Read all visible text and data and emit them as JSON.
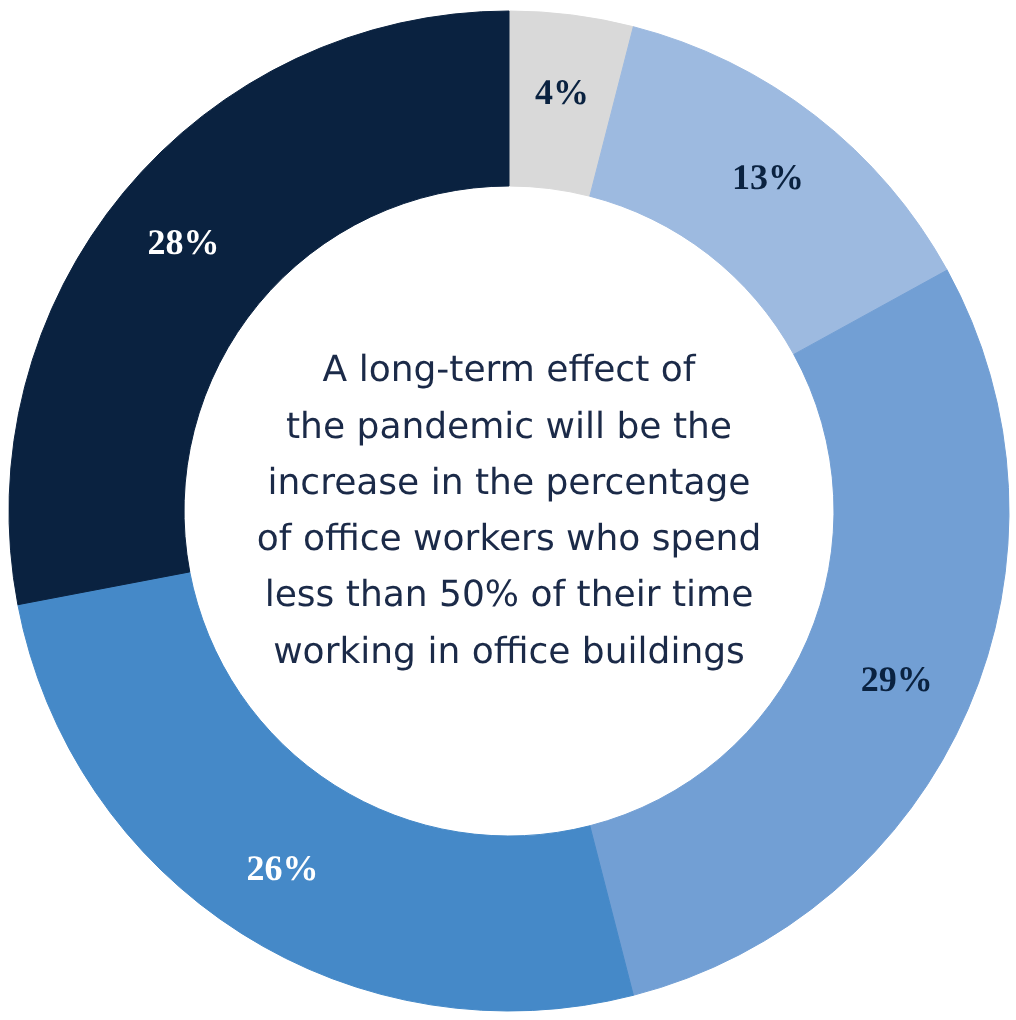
{
  "chart_data": {
    "type": "donut",
    "title": "A long-term effect of\nthe pandemic will be the\nincrease in the percentage\nof office workers who spend\nless than 50% of their time\nworking in office buildings",
    "categories": [
      null,
      null,
      null,
      null,
      null
    ],
    "values": [
      4,
      13,
      29,
      26,
      28
    ],
    "colors": [
      "#d9d9d9",
      "#9dbae0",
      "#729fd4",
      "#4589c8",
      "#0a2240"
    ],
    "value_labels": [
      "4%",
      "13%",
      "29%",
      "26%",
      "28%"
    ]
  }
}
